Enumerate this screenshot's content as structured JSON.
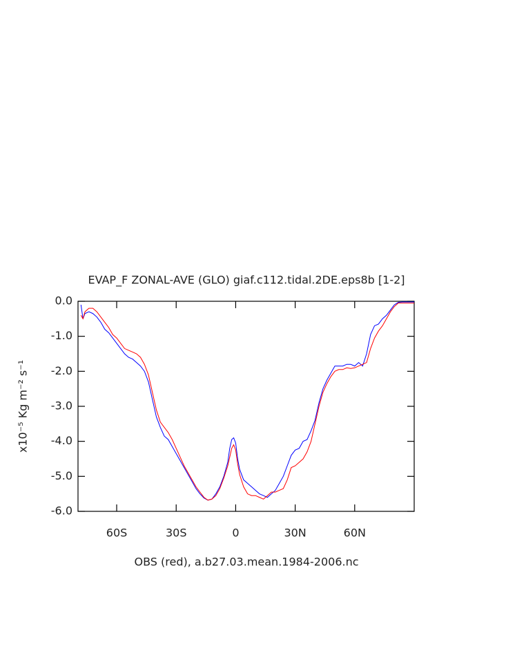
{
  "chart_data": {
    "type": "line",
    "title": "EVAP_F ZONAL-AVE (GLO) giaf.c112.tidal.2DE.eps8b [1-2]",
    "x_label": "OBS (red), a.b27.03.mean.1984-2006.nc",
    "y_label": "x10⁻⁵ Kg m⁻² s⁻¹",
    "x": [
      -78,
      -77,
      -76,
      -74,
      -72,
      -70,
      -68,
      -66,
      -64,
      -62,
      -60,
      -58,
      -56,
      -54,
      -52,
      -50,
      -48,
      -46,
      -44,
      -42,
      -40,
      -38,
      -36,
      -34,
      -32,
      -30,
      -28,
      -26,
      -24,
      -22,
      -20,
      -18,
      -16,
      -14,
      -12,
      -10,
      -8,
      -6,
      -4,
      -3,
      -2,
      -1,
      0,
      1,
      2,
      4,
      6,
      8,
      10,
      12,
      14,
      16,
      18,
      20,
      22,
      24,
      26,
      28,
      30,
      32,
      34,
      36,
      38,
      40,
      42,
      44,
      46,
      48,
      50,
      52,
      54,
      56,
      58,
      60,
      62,
      64,
      66,
      68,
      70,
      72,
      74,
      76,
      78,
      80,
      82,
      84,
      86,
      88,
      90
    ],
    "series": [
      {
        "color": "#0000ff",
        "values": [
          -0.1,
          -0.5,
          -0.35,
          -0.3,
          -0.35,
          -0.45,
          -0.6,
          -0.8,
          -0.9,
          -1.05,
          -1.2,
          -1.35,
          -1.5,
          -1.6,
          -1.65,
          -1.75,
          -1.85,
          -2.0,
          -2.3,
          -2.8,
          -3.3,
          -3.6,
          -3.85,
          -3.95,
          -4.15,
          -4.35,
          -4.55,
          -4.75,
          -4.95,
          -5.15,
          -5.35,
          -5.5,
          -5.62,
          -5.68,
          -5.65,
          -5.5,
          -5.3,
          -5.0,
          -4.6,
          -4.2,
          -3.95,
          -3.9,
          -4.05,
          -4.5,
          -4.8,
          -5.1,
          -5.2,
          -5.3,
          -5.4,
          -5.5,
          -5.55,
          -5.6,
          -5.5,
          -5.4,
          -5.2,
          -5.0,
          -4.7,
          -4.4,
          -4.25,
          -4.2,
          -4.0,
          -3.95,
          -3.7,
          -3.4,
          -2.9,
          -2.5,
          -2.25,
          -2.05,
          -1.85,
          -1.85,
          -1.85,
          -1.8,
          -1.8,
          -1.85,
          -1.75,
          -1.85,
          -1.5,
          -0.95,
          -0.7,
          -0.65,
          -0.5,
          -0.4,
          -0.25,
          -0.1,
          -0.03,
          -0.02,
          -0.02,
          -0.02,
          -0.02
        ]
      },
      {
        "color": "#ff0000",
        "values": [
          -0.4,
          -0.5,
          -0.3,
          -0.2,
          -0.2,
          -0.3,
          -0.45,
          -0.6,
          -0.75,
          -0.95,
          -1.05,
          -1.2,
          -1.35,
          -1.4,
          -1.45,
          -1.5,
          -1.6,
          -1.8,
          -2.1,
          -2.6,
          -3.1,
          -3.45,
          -3.6,
          -3.75,
          -3.95,
          -4.2,
          -4.45,
          -4.7,
          -4.9,
          -5.1,
          -5.3,
          -5.45,
          -5.6,
          -5.68,
          -5.65,
          -5.55,
          -5.35,
          -5.05,
          -4.7,
          -4.45,
          -4.2,
          -4.1,
          -4.25,
          -4.65,
          -4.95,
          -5.3,
          -5.5,
          -5.55,
          -5.55,
          -5.6,
          -5.65,
          -5.55,
          -5.45,
          -5.45,
          -5.4,
          -5.35,
          -5.1,
          -4.75,
          -4.7,
          -4.6,
          -4.5,
          -4.3,
          -4.0,
          -3.5,
          -3.0,
          -2.6,
          -2.35,
          -2.15,
          -2.0,
          -1.95,
          -1.95,
          -1.9,
          -1.92,
          -1.9,
          -1.85,
          -1.8,
          -1.75,
          -1.35,
          -1.05,
          -0.85,
          -0.7,
          -0.5,
          -0.3,
          -0.15,
          -0.05,
          -0.05,
          -0.05,
          -0.05,
          -0.05
        ]
      }
    ],
    "xlim": [
      -79.5,
      90
    ],
    "xticks": [
      {
        "value": -60,
        "label": "60S"
      },
      {
        "value": -30,
        "label": "30S"
      },
      0,
      {
        "value": 30,
        "label": "30N"
      },
      {
        "value": 60,
        "label": "60N"
      }
    ],
    "ylim": [
      -6,
      0
    ],
    "yticks": [
      {
        "value": -6,
        "label": "-6.0"
      },
      {
        "value": -5,
        "label": "-5.0"
      },
      {
        "value": -4,
        "label": "-4.0"
      },
      {
        "value": -3,
        "label": "-3.0"
      },
      {
        "value": -2,
        "label": "-2.0"
      },
      {
        "value": -1,
        "label": "-1.0"
      },
      {
        "value": 0,
        "label": "0.0"
      }
    ],
    "grid": false
  }
}
